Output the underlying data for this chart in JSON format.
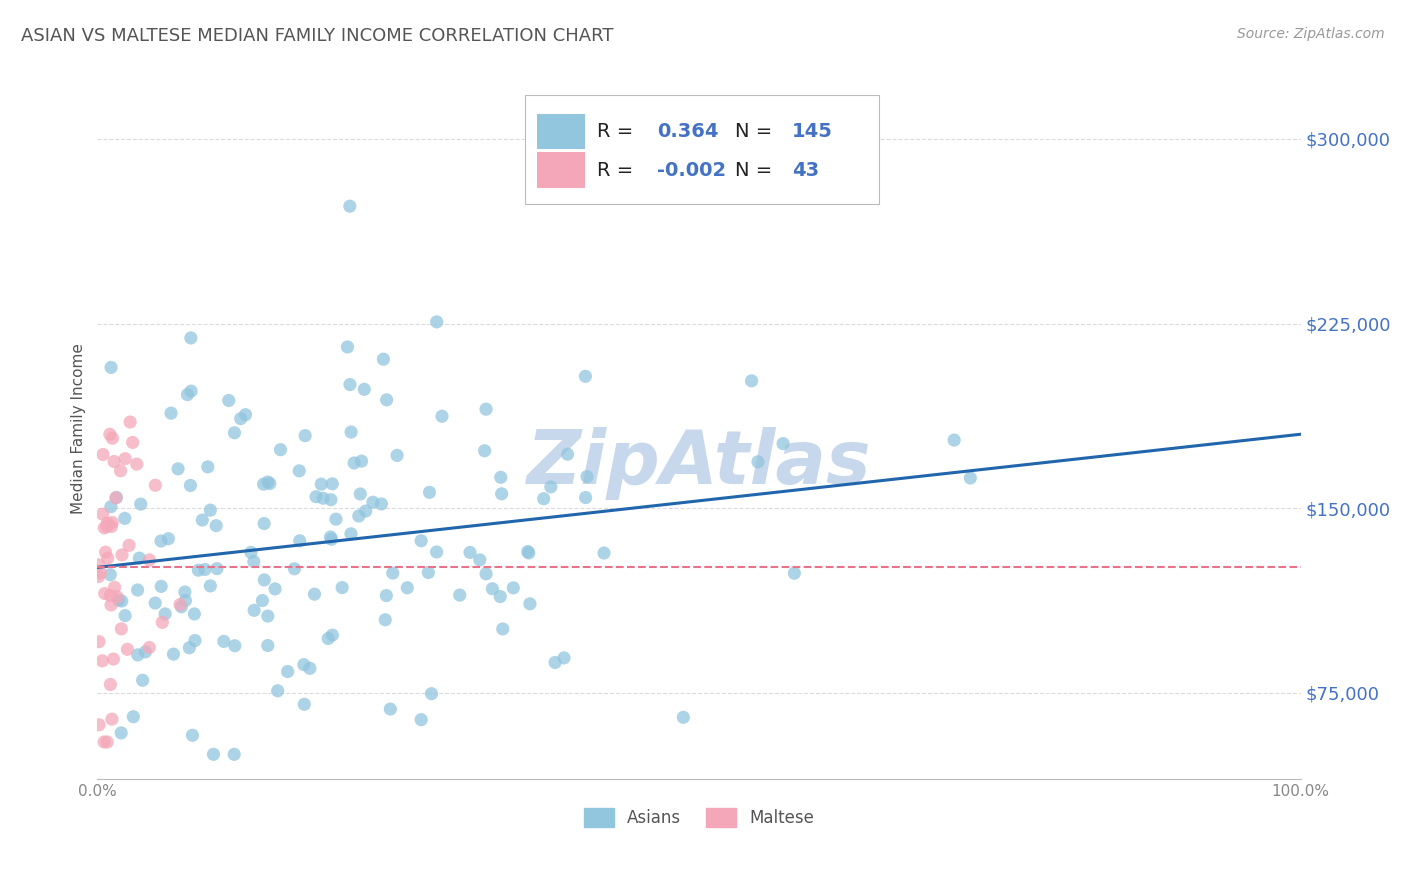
{
  "title": "ASIAN VS MALTESE MEDIAN FAMILY INCOME CORRELATION CHART",
  "source": "Source: ZipAtlas.com",
  "ylabel": "Median Family Income",
  "xlim": [
    0,
    1.0
  ],
  "ylim": [
    40000,
    325000
  ],
  "ytick_positions": [
    75000,
    150000,
    225000,
    300000
  ],
  "ytick_labels": [
    "$75,000",
    "$150,000",
    "$225,000",
    "$300,000"
  ],
  "asian_color": "#92C5DE",
  "maltese_color": "#F4A7B9",
  "trend_asian_color": "#2166AC",
  "trend_maltese_color": "#E8728A",
  "legend_r_asian": "0.364",
  "legend_n_asian": "145",
  "legend_r_maltese": "-0.002",
  "legend_n_maltese": "43",
  "background_color": "#FFFFFF",
  "grid_color": "#CCCCCC",
  "title_color": "#555555",
  "axis_label_color": "#555555",
  "tick_label_color": "#4472C4",
  "watermark_text": "ZipAtlas",
  "watermark_color": "#C8D8EC",
  "seed_asian": 42,
  "seed_maltese": 7
}
